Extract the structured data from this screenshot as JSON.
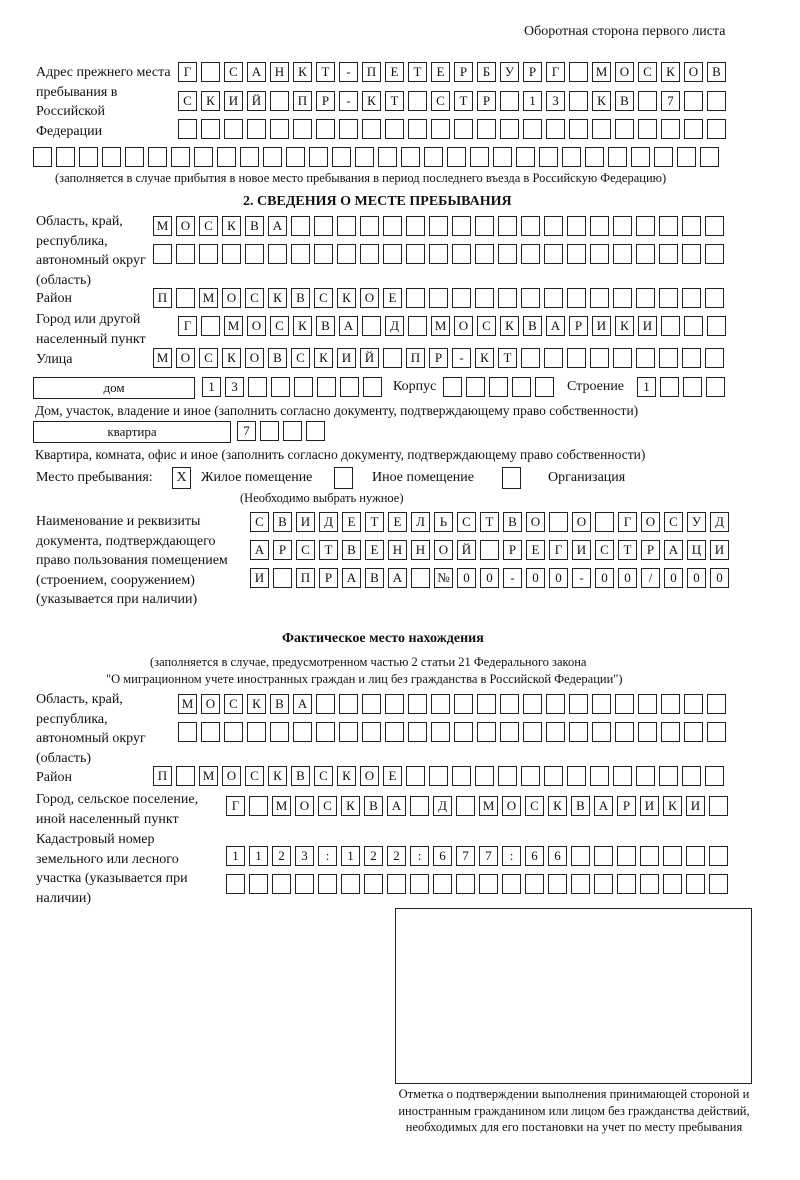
{
  "page_header": "Оборотная сторона первого листа",
  "prev_address": {
    "label": "Адрес прежнего места пребывания в Российской Федерации",
    "rows": [
      [
        "Г",
        "",
        "С",
        "А",
        "Н",
        "К",
        "Т",
        "-",
        "П",
        "Е",
        "Т",
        "Е",
        "Р",
        "Б",
        "У",
        "Р",
        "Г",
        "",
        "М",
        "О",
        "С",
        "К",
        "О",
        "В"
      ],
      [
        "С",
        "К",
        "И",
        "Й",
        "",
        "П",
        "Р",
        "-",
        "К",
        "Т",
        "",
        "С",
        "Т",
        "Р",
        "",
        "1",
        "3",
        "",
        "К",
        "В",
        "",
        "7",
        "",
        ""
      ],
      [
        "",
        "",
        "",
        "",
        "",
        "",
        "",
        "",
        "",
        "",
        "",
        "",
        "",
        "",
        "",
        "",
        "",
        "",
        "",
        "",
        "",
        "",
        "",
        ""
      ],
      [
        "",
        "",
        "",
        "",
        "",
        "",
        "",
        "",
        "",
        "",
        "",
        "",
        "",
        "",
        "",
        "",
        "",
        "",
        "",
        "",
        "",
        "",
        "",
        "",
        "",
        "",
        "",
        "",
        "",
        ""
      ]
    ],
    "note": "(заполняется в случае прибытия в новое место пребывания в период последнего въезда в Российскую Федерацию)"
  },
  "section2": {
    "title": "2. СВЕДЕНИЯ О МЕСТЕ ПРЕБЫВАНИЯ",
    "region_label": "Область, край, республика, автономный округ (область)",
    "region_rows": [
      [
        "М",
        "О",
        "С",
        "К",
        "В",
        "А",
        "",
        "",
        "",
        "",
        "",
        "",
        "",
        "",
        "",
        "",
        "",
        "",
        "",
        "",
        "",
        "",
        "",
        "",
        ""
      ],
      [
        "",
        "",
        "",
        "",
        "",
        "",
        "",
        "",
        "",
        "",
        "",
        "",
        "",
        "",
        "",
        "",
        "",
        "",
        "",
        "",
        "",
        "",
        "",
        "",
        ""
      ]
    ],
    "district_label": "Район",
    "district_row": [
      "П",
      "",
      "М",
      "О",
      "С",
      "К",
      "В",
      "С",
      "К",
      "О",
      "Е",
      "",
      "",
      "",
      "",
      "",
      "",
      "",
      "",
      "",
      "",
      "",
      "",
      "",
      ""
    ],
    "city_label": "Город или другой населенный пункт",
    "city_row": [
      "Г",
      "",
      "М",
      "О",
      "С",
      "К",
      "В",
      "А",
      "",
      "Д",
      "",
      "М",
      "О",
      "С",
      "К",
      "В",
      "А",
      "Р",
      "И",
      "К",
      "И",
      "",
      "",
      ""
    ],
    "street_label": "Улица",
    "street_row": [
      "М",
      "О",
      "С",
      "К",
      "О",
      "В",
      "С",
      "К",
      "И",
      "Й",
      "",
      "П",
      "Р",
      "-",
      "К",
      "Т",
      "",
      "",
      "",
      "",
      "",
      "",
      "",
      "",
      ""
    ],
    "house_type": "дом",
    "house_cells": [
      "1",
      "3",
      "",
      "",
      "",
      "",
      "",
      ""
    ],
    "korpus_label": "Корпус",
    "korpus_cells": [
      "",
      "",
      "",
      "",
      ""
    ],
    "building_label": "Строение",
    "building_cells": [
      "1",
      "",
      "",
      ""
    ],
    "house_note": "Дом, участок, владение и иное (заполнить согласно документу, подтверждающему право собственности)",
    "flat_type": "квартира",
    "flat_cells": [
      "7",
      "",
      "",
      ""
    ],
    "flat_note": "Квартира, комната, офис и иное (заполнить согласно документу, подтверждающему право собственности)",
    "stay_label": "Место пребывания:",
    "stay_options": [
      {
        "label": "Жилое помещение",
        "mark": "X"
      },
      {
        "label": "Иное помещение",
        "mark": ""
      },
      {
        "label": "Организация",
        "mark": ""
      }
    ],
    "stay_note": "(Необходимо выбрать нужное)",
    "doc_label": "Наименование и реквизиты документа, подтверждающего право пользования помещением (строением, сооружением) (указывается при наличии)",
    "doc_rows": [
      [
        "С",
        "В",
        "И",
        "Д",
        "Е",
        "Т",
        "Е",
        "Л",
        "Ь",
        "С",
        "Т",
        "В",
        "О",
        "",
        "О",
        "",
        "Г",
        "О",
        "С",
        "У",
        "Д"
      ],
      [
        "А",
        "Р",
        "С",
        "Т",
        "В",
        "Е",
        "Н",
        "Н",
        "О",
        "Й",
        "",
        "Р",
        "Е",
        "Г",
        "И",
        "С",
        "Т",
        "Р",
        "А",
        "Ц",
        "И"
      ],
      [
        "И",
        "",
        "П",
        "Р",
        "А",
        "В",
        "А",
        "",
        "№",
        "0",
        "0",
        "-",
        "0",
        "0",
        "-",
        "0",
        "0",
        "/",
        "0",
        "0",
        "0"
      ]
    ]
  },
  "actual": {
    "title": "Фактическое место нахождения",
    "note1": "(заполняется в случае, предусмотренном частью 2 статьи 21 Федерального закона",
    "note2": "\"О миграционном учете иностранных граждан и лиц без гражданства в Российской Федерации\")",
    "region_label": "Область, край, республика, автономный округ (область)",
    "region_rows": [
      [
        "М",
        "О",
        "С",
        "К",
        "В",
        "А",
        "",
        "",
        "",
        "",
        "",
        "",
        "",
        "",
        "",
        "",
        "",
        "",
        "",
        "",
        "",
        "",
        "",
        ""
      ],
      [
        "",
        "",
        "",
        "",
        "",
        "",
        "",
        "",
        "",
        "",
        "",
        "",
        "",
        "",
        "",
        "",
        "",
        "",
        "",
        "",
        "",
        "",
        "",
        ""
      ]
    ],
    "district_label": "Район",
    "district_row": [
      "П",
      "",
      "М",
      "О",
      "С",
      "К",
      "В",
      "С",
      "К",
      "О",
      "Е",
      "",
      "",
      "",
      "",
      "",
      "",
      "",
      "",
      "",
      "",
      "",
      "",
      "",
      ""
    ],
    "city_label": "Город, сельское поселение, иной населенный пункт",
    "city_row": [
      "Г",
      "",
      "М",
      "О",
      "С",
      "К",
      "В",
      "А",
      "",
      "Д",
      "",
      "М",
      "О",
      "С",
      "К",
      "В",
      "А",
      "Р",
      "И",
      "К",
      "И",
      ""
    ],
    "cadastre_label": "Кадастровый номер земельного или лесного участка (указывается при наличии)",
    "cadastre_rows": [
      [
        "1",
        "1",
        "2",
        "3",
        ":",
        "1",
        "2",
        "2",
        ":",
        "6",
        "7",
        "7",
        ":",
        "6",
        "6",
        "",
        "",
        "",
        "",
        "",
        "",
        ""
      ],
      [
        "",
        "",
        "",
        "",
        "",
        "",
        "",
        "",
        "",
        "",
        "",
        "",
        "",
        "",
        "",
        "",
        "",
        "",
        "",
        "",
        "",
        ""
      ]
    ]
  },
  "stamp_caption": "Отметка о подтверждении выполнения принимающей стороной и иностранным гражданином или лицом без гражданства действий, необходимых для его постановки на учет по месту пребывания"
}
